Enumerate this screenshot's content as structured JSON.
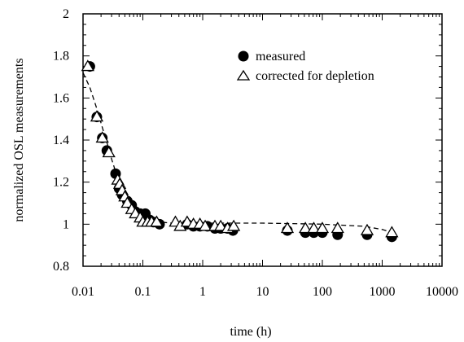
{
  "chart_data": {
    "type": "scatter",
    "xscale": "log",
    "xlim": [
      0.01,
      10000
    ],
    "ylim": [
      0.8,
      2
    ],
    "xlabel": "time (h)",
    "ylabel": "normalized OSL measurements",
    "x_ticks": [
      0.01,
      0.1,
      1,
      10,
      100,
      1000,
      10000
    ],
    "x_tick_labels": [
      "0.01",
      "0.1",
      "1",
      "10",
      "100",
      "1000",
      "10000"
    ],
    "y_ticks": [
      0.8,
      1,
      1.2,
      1.4,
      1.6,
      1.8,
      2
    ],
    "y_tick_labels": [
      "0.8",
      "1",
      "1.2",
      "1.4",
      "1.6",
      "1.8",
      "2"
    ],
    "grid": false,
    "legend_position": "top-right",
    "series": [
      {
        "name": "measured",
        "marker": "filled-circle",
        "x": [
          0.013,
          0.017,
          0.021,
          0.025,
          0.035,
          0.04,
          0.045,
          0.055,
          0.065,
          0.075,
          0.09,
          0.11,
          0.13,
          0.15,
          0.19,
          0.55,
          0.7,
          0.9,
          1.2,
          1.6,
          2.0,
          2.6,
          3.2,
          26,
          52,
          72,
          100,
          180,
          560,
          1450
        ],
        "y": [
          1.75,
          1.51,
          1.41,
          1.35,
          1.24,
          1.17,
          1.14,
          1.11,
          1.09,
          1.06,
          1.05,
          1.05,
          1.02,
          1.01,
          1.0,
          1.0,
          0.99,
          0.99,
          0.99,
          0.98,
          0.98,
          0.98,
          0.97,
          0.97,
          0.96,
          0.96,
          0.96,
          0.95,
          0.95,
          0.94
        ]
      },
      {
        "name": "corrected for depletion",
        "marker": "open-triangle",
        "x": [
          0.012,
          0.017,
          0.021,
          0.027,
          0.038,
          0.041,
          0.045,
          0.05,
          0.055,
          0.065,
          0.075,
          0.09,
          0.1,
          0.12,
          0.14,
          0.17,
          0.35,
          0.42,
          0.55,
          0.7,
          0.9,
          1.1,
          1.6,
          2.0,
          2.6,
          3.3,
          26,
          52,
          72,
          100,
          180,
          560,
          1450
        ],
        "y": [
          1.75,
          1.51,
          1.41,
          1.34,
          1.21,
          1.19,
          1.16,
          1.13,
          1.1,
          1.07,
          1.05,
          1.03,
          1.01,
          1.01,
          1.01,
          1.01,
          1.01,
          0.99,
          1.01,
          1.0,
          1.0,
          0.99,
          0.99,
          0.99,
          0.98,
          0.99,
          0.98,
          0.98,
          0.98,
          0.98,
          0.98,
          0.97,
          0.96
        ]
      },
      {
        "name": "",
        "style": "dashed-line",
        "x": [
          0.01,
          0.013,
          0.017,
          0.021,
          0.025,
          0.03,
          0.035,
          0.04,
          0.05,
          0.06,
          0.08,
          0.1,
          0.15,
          0.2,
          0.3,
          0.5,
          1,
          3,
          10,
          100,
          500,
          1000,
          1500
        ],
        "y": [
          1.72,
          1.65,
          1.55,
          1.46,
          1.39,
          1.31,
          1.25,
          1.2,
          1.13,
          1.09,
          1.05,
          1.03,
          1.015,
          1.01,
          1.005,
          1.005,
          1.005,
          1.005,
          1.005,
          1.0,
          0.99,
          0.975,
          0.96
        ]
      }
    ]
  }
}
